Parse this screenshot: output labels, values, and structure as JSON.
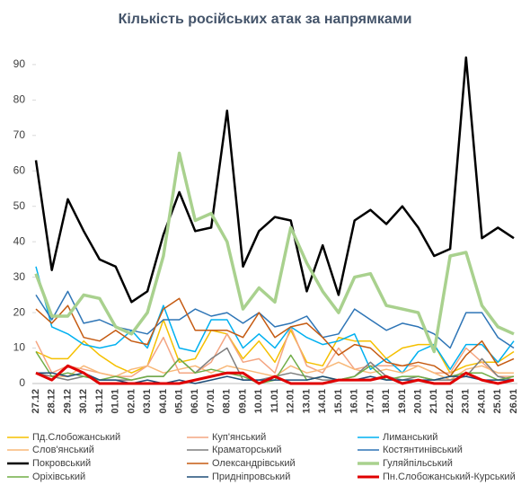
{
  "chart_data": {
    "type": "line",
    "title": "Кількість російських атак за напрямками",
    "categories": [
      "27.12",
      "28.12",
      "29.12",
      "30.12",
      "31.12",
      "01.01",
      "02.01",
      "03.01",
      "04.01",
      "05.01",
      "06.01",
      "07.01",
      "08.01",
      "09.01",
      "10.01",
      "11.01",
      "12.01",
      "13.01",
      "14.01",
      "15.01",
      "16.01",
      "17.01",
      "18.01",
      "19.01",
      "20.01",
      "21.01",
      "22.01",
      "23.01",
      "24.01",
      "25.01",
      "26.01"
    ],
    "ylim": [
      0,
      92
    ],
    "yticks": [
      0,
      10,
      20,
      30,
      40,
      50,
      60,
      70,
      80,
      90
    ],
    "grid": false,
    "series": [
      {
        "name": "Пд.Слобожанський",
        "color": "#f5c000",
        "width": 1.5,
        "values": [
          9,
          7,
          7,
          12,
          8,
          5,
          3,
          5,
          18,
          6,
          7,
          15,
          14,
          7,
          12,
          6,
          15,
          6,
          5,
          13,
          12,
          12,
          7,
          10,
          11,
          11,
          3,
          5,
          6,
          6,
          9
        ]
      },
      {
        "name": "Куп'янський",
        "color": "#f4a582",
        "width": 1.5,
        "values": [
          12,
          3,
          5,
          4,
          3,
          2,
          2,
          5,
          13,
          3,
          3,
          6,
          14,
          6,
          7,
          3,
          16,
          5,
          3,
          10,
          4,
          5,
          5,
          5,
          5,
          3,
          3,
          10,
          6,
          2,
          2
        ]
      },
      {
        "name": "Лиманський",
        "color": "#00b0f0",
        "width": 1.5,
        "values": [
          33,
          16,
          14,
          11,
          10,
          11,
          15,
          10,
          22,
          10,
          9,
          18,
          18,
          10,
          14,
          10,
          16,
          13,
          11,
          12,
          14,
          4,
          7,
          3,
          9,
          11,
          4,
          11,
          11,
          6,
          12
        ]
      },
      {
        "name": "Слов'янський",
        "color": "#f8b878",
        "width": 1.5,
        "values": [
          3,
          2,
          2,
          5,
          3,
          2,
          4,
          5,
          3,
          4,
          5,
          3,
          5,
          4,
          3,
          2,
          5,
          3,
          4,
          6,
          4,
          3,
          4,
          3,
          5,
          3,
          1,
          4,
          5,
          3,
          3
        ]
      },
      {
        "name": "Краматорський",
        "color": "#7f7f7f",
        "width": 1.5,
        "values": [
          3,
          2,
          1,
          2,
          1,
          1,
          1,
          2,
          2,
          7,
          3,
          7,
          10,
          1,
          1,
          2,
          3,
          2,
          1,
          1,
          2,
          6,
          2,
          1,
          2,
          1,
          1,
          2,
          7,
          2,
          1
        ]
      },
      {
        "name": "Костянтинівський",
        "color": "#2e75b6",
        "width": 1.5,
        "values": [
          25,
          18,
          26,
          17,
          18,
          16,
          15,
          14,
          18,
          18,
          21,
          19,
          20,
          17,
          20,
          16,
          17,
          19,
          13,
          14,
          21,
          18,
          15,
          17,
          16,
          14,
          10,
          20,
          20,
          13,
          10
        ]
      },
      {
        "name": "Покровський",
        "color": "#000000",
        "width": 2.5,
        "values": [
          63,
          32,
          52,
          43,
          35,
          33,
          23,
          26,
          42,
          54,
          43,
          44,
          77,
          33,
          43,
          47,
          46,
          26,
          39,
          25,
          46,
          49,
          45,
          50,
          44,
          36,
          38,
          92,
          41,
          44,
          41
        ]
      },
      {
        "name": "Олександрівський",
        "color": "#c55a11",
        "width": 1.5,
        "values": [
          21,
          17,
          22,
          13,
          12,
          15,
          12,
          11,
          21,
          24,
          15,
          15,
          15,
          13,
          20,
          13,
          16,
          17,
          13,
          8,
          11,
          10,
          6,
          5,
          6,
          5,
          2,
          8,
          12,
          5,
          7
        ]
      },
      {
        "name": "Гуляйпільський",
        "color": "#a9d18e",
        "width": 3.5,
        "values": [
          31,
          19,
          19,
          25,
          24,
          16,
          14,
          20,
          36,
          65,
          46,
          48,
          40,
          21,
          27,
          23,
          44,
          34,
          26,
          20,
          30,
          31,
          22,
          21,
          20,
          9,
          36,
          37,
          22,
          16,
          14
        ]
      },
      {
        "name": "Оріхівський",
        "color": "#70ad47",
        "width": 1.5,
        "values": [
          9,
          2,
          3,
          2,
          1,
          2,
          1,
          2,
          2,
          7,
          3,
          4,
          3,
          2,
          0,
          1,
          8,
          1,
          2,
          1,
          2,
          5,
          1,
          2,
          2,
          1,
          2,
          3,
          3,
          1,
          2
        ]
      },
      {
        "name": "Придніпровський",
        "color": "#1f4e79",
        "width": 1.5,
        "values": [
          3,
          3,
          2,
          3,
          1,
          1,
          0,
          1,
          0,
          1,
          0,
          1,
          2,
          1,
          1,
          1,
          1,
          1,
          2,
          1,
          1,
          2,
          1,
          1,
          1,
          1,
          2,
          2,
          1,
          1,
          1
        ]
      },
      {
        "name": "Пн.Слобожанський-Курський",
        "color": "#e00000",
        "width": 3,
        "values": [
          3,
          1,
          5,
          3,
          0,
          0,
          0,
          0,
          0,
          0,
          1,
          2,
          3,
          3,
          0,
          2,
          0,
          0,
          0,
          1,
          1,
          1,
          2,
          0,
          1,
          0,
          0,
          3,
          1,
          0,
          1
        ]
      }
    ]
  }
}
